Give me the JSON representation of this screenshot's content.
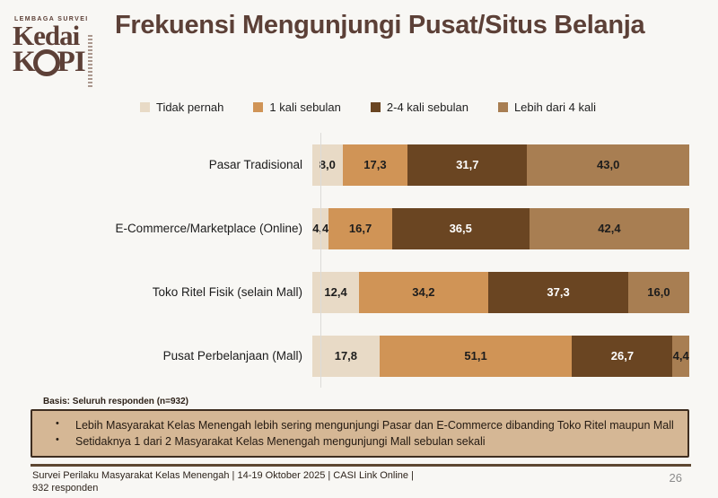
{
  "logo": {
    "tagline": "LEMBAGA SURVEI",
    "line1": "Kedai",
    "line2_left": "K",
    "line2_right": "PI"
  },
  "title": "Frekuensi Mengunjungi Pusat/Situs Belanja",
  "chart_data": {
    "type": "bar",
    "stacked": true,
    "orientation": "horizontal",
    "title": "Frekuensi Mengunjungi Pusat/Situs Belanja",
    "categories": [
      "Pasar Tradisional",
      "E-Commerce/Marketplace (Online)",
      "Toko Ritel Fisik (selain Mall)",
      "Pusat Perbelanjaan (Mall)"
    ],
    "series": [
      {
        "name": "Tidak pernah",
        "color": "#e8dac6",
        "label_color": "#1d1d1d",
        "values": [
          8.0,
          4.4,
          12.4,
          17.8
        ]
      },
      {
        "name": "1 kali sebulan",
        "color": "#d09456",
        "label_color": "#1d1d1d",
        "values": [
          17.3,
          16.7,
          34.2,
          51.1
        ]
      },
      {
        "name": "2-4 kali sebulan",
        "color": "#6a4522",
        "label_color": "#ffffff",
        "values": [
          31.7,
          36.5,
          37.3,
          26.7
        ]
      },
      {
        "name": "Lebih dari 4 kali",
        "color": "#a87e52",
        "label_color": "#1d1d1d",
        "values": [
          43.0,
          42.4,
          16.0,
          4.4
        ]
      }
    ],
    "xlim": [
      0,
      100
    ],
    "value_format": "comma-decimal",
    "legend_position": "top",
    "grid": false
  },
  "basis": "Basis: Seluruh responden (n=932)",
  "insights": [
    "Lebih Masyarakat Kelas Menengah lebih sering mengunjungi Pasar dan E-Commerce dibanding Toko Ritel maupun Mall",
    "Setidaknya 1 dari 2 Masyarakat Kelas Menengah mengunjungi Mall sebulan sekali"
  ],
  "footer": {
    "line1": "Survei Perilaku Masyarakat Kelas Menengah | 14-19 Oktober 2025 | CASI Link Online |",
    "line2": "932 responden",
    "page": "26"
  }
}
